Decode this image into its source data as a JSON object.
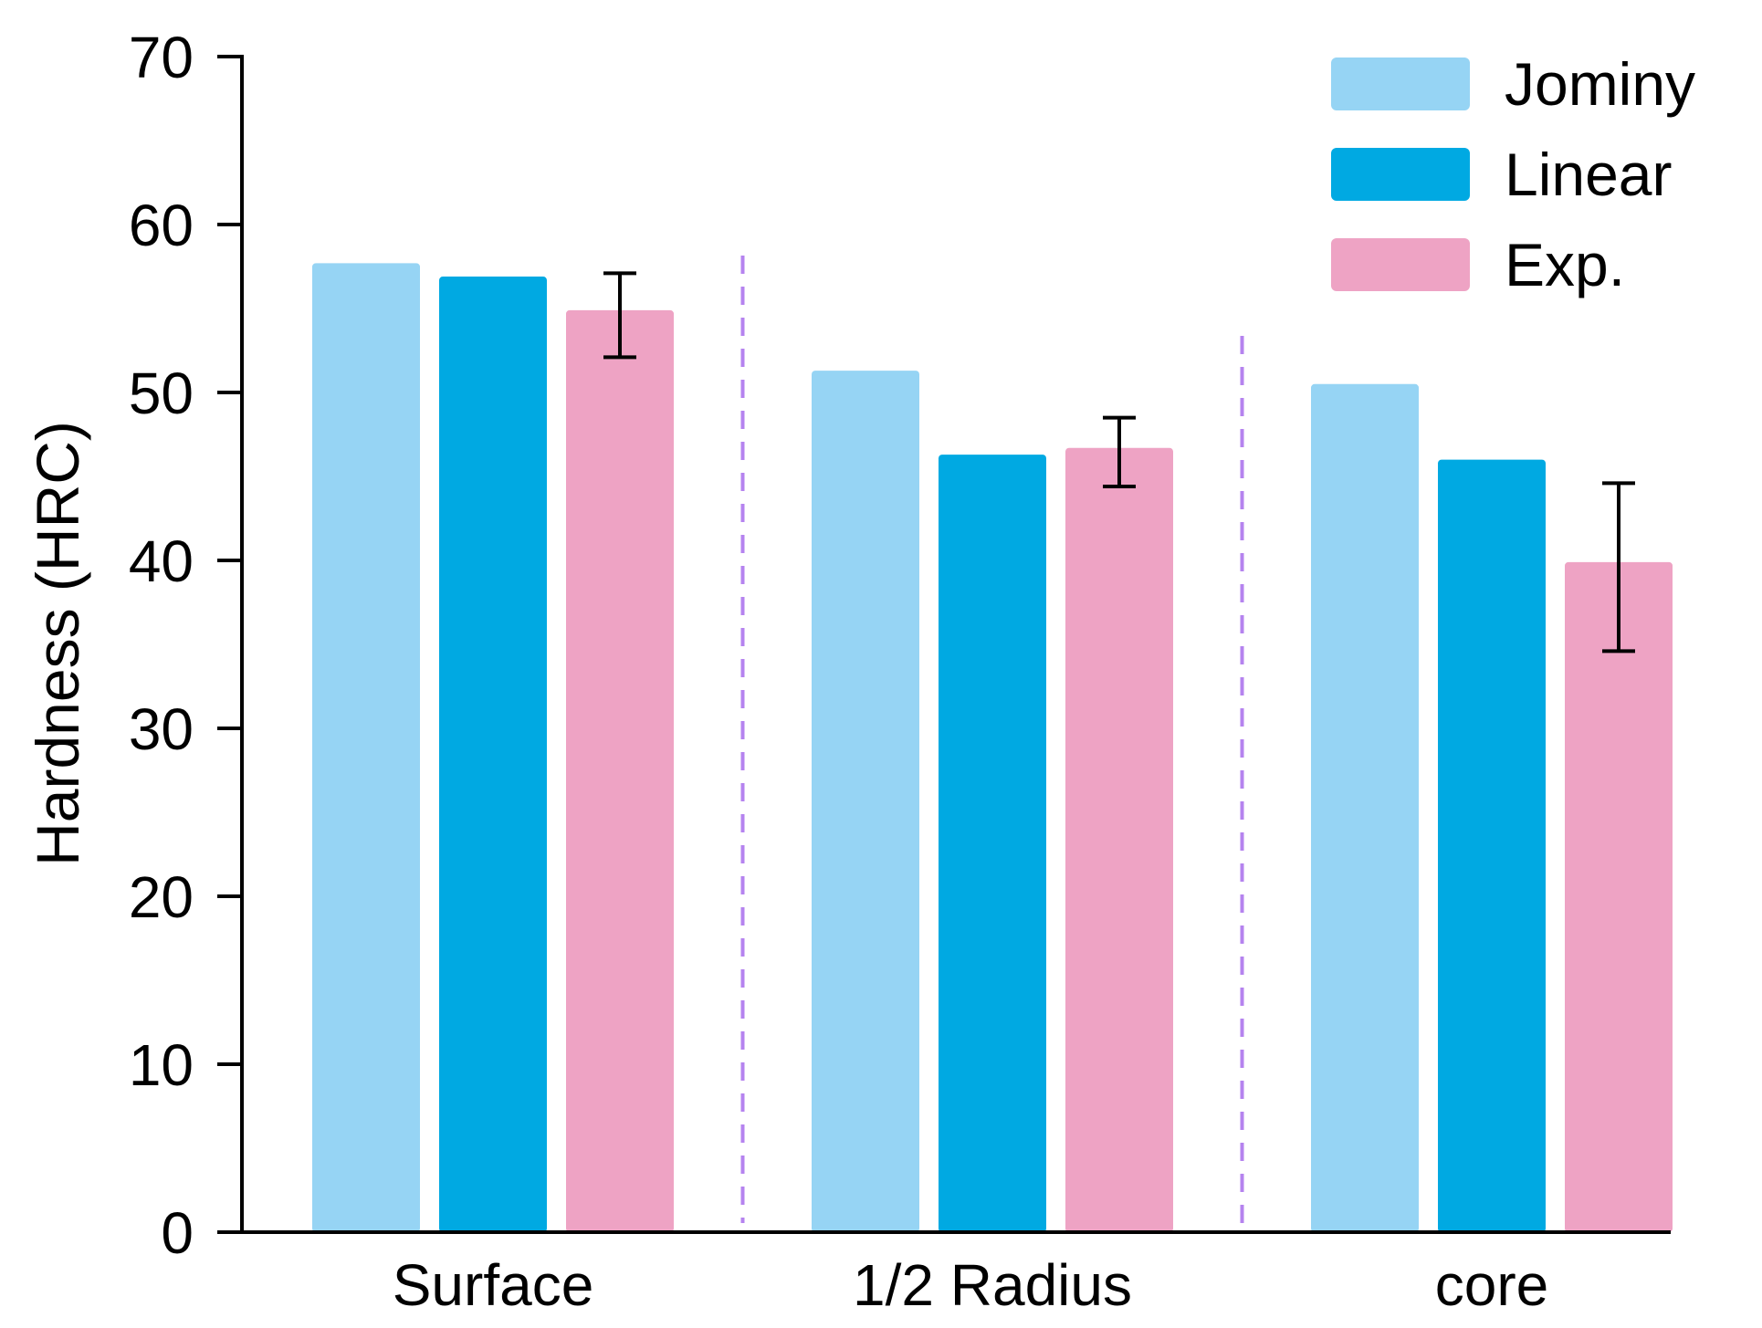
{
  "chart_data": {
    "type": "bar",
    "title": "",
    "xlabel": "",
    "ylabel": "Hardness (HRC)",
    "ylim": [
      0,
      70
    ],
    "yticks": [
      0,
      10,
      20,
      30,
      40,
      50,
      60,
      70
    ],
    "categories": [
      "Surface",
      "1/2 Radius",
      "core"
    ],
    "series": [
      {
        "name": "Jominy",
        "color": "#96d4f4",
        "values": [
          57.7,
          51.3,
          50.5
        ]
      },
      {
        "name": "Linear",
        "color": "#00a9e2",
        "values": [
          56.9,
          46.3,
          46.0
        ]
      },
      {
        "name": "Exp.",
        "color": "#eea3c4",
        "values": [
          54.9,
          46.7,
          39.9
        ],
        "error_low": [
          52.1,
          44.4,
          34.6
        ],
        "error_high": [
          57.1,
          48.5,
          44.6
        ]
      }
    ],
    "group_separators": "dashed",
    "separator_color": "#b583ef",
    "grid": false,
    "legend_position": "top-right"
  }
}
